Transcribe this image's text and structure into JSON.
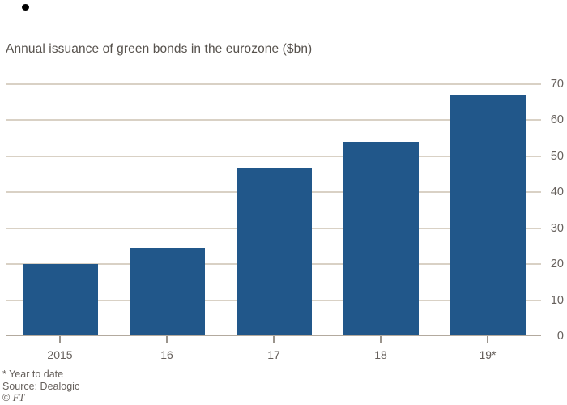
{
  "chart_data": {
    "type": "bar",
    "title": "Annual issuance of green bonds in the eurozone ($bn)",
    "categories": [
      "2015",
      "16",
      "17",
      "18",
      "19*"
    ],
    "values": [
      20,
      24.5,
      46.5,
      54,
      67
    ],
    "xlabel": "",
    "ylabel": "",
    "ylim": [
      0,
      70
    ],
    "yticks": [
      0,
      10,
      20,
      30,
      40,
      50,
      60,
      70
    ],
    "ytick_labels": [
      "0",
      "10",
      "20",
      "30",
      "40",
      "50",
      "60",
      "70"
    ],
    "ylabel_side": "right",
    "grid": "horizontal",
    "legend": "none"
  },
  "footer": {
    "note": "* Year to date",
    "source": "Source: Dealogic",
    "copyright_symbol": "©",
    "copyright_brand": "FT"
  },
  "colors": {
    "background": "#ffffff",
    "bar": "#21578a",
    "gridline": "#d9d1c5",
    "axis_line": "#b3aa9e",
    "tick": "#9a948c",
    "title_text": "#57524d",
    "label_text": "#66605c",
    "footer_text": "#66605c",
    "dot": "#000000"
  }
}
